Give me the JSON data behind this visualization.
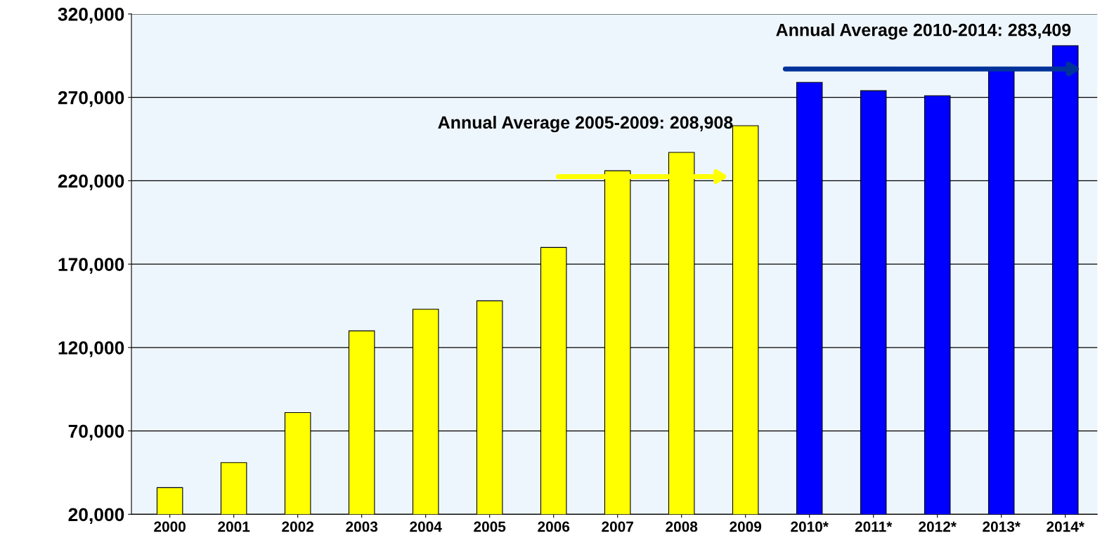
{
  "chart_data": {
    "type": "bar",
    "categories": [
      "2000",
      "2001",
      "2002",
      "2003",
      "2004",
      "2005",
      "2006",
      "2007",
      "2008",
      "2009",
      "2010*",
      "2011*",
      "2012*",
      "2013*",
      "2014*"
    ],
    "values": [
      36000,
      51000,
      81000,
      130000,
      143000,
      148000,
      180000,
      226000,
      237000,
      253000,
      279000,
      274000,
      271000,
      287000,
      301000
    ],
    "colors": [
      "#ffff00",
      "#ffff00",
      "#ffff00",
      "#ffff00",
      "#ffff00",
      "#ffff00",
      "#ffff00",
      "#ffff00",
      "#ffff00",
      "#ffff00",
      "#0000ff",
      "#0000ff",
      "#0000ff",
      "#0000ff",
      "#0000ff"
    ],
    "ylim": [
      20000,
      320000
    ],
    "yticks": [
      {
        "value": 20000,
        "label": "20,000"
      },
      {
        "value": 70000,
        "label": "70,000"
      },
      {
        "value": 120000,
        "label": "120,000"
      },
      {
        "value": 170000,
        "label": "170,000"
      },
      {
        "value": 220000,
        "label": "220,000"
      },
      {
        "value": 270000,
        "label": "270,000"
      },
      {
        "value": 320000,
        "label": "320,000"
      }
    ],
    "grid": "y",
    "annotations": [
      "Annual Average 2005-2009: 208,908",
      "Annual Average 2010-2014: 283,409"
    ]
  }
}
